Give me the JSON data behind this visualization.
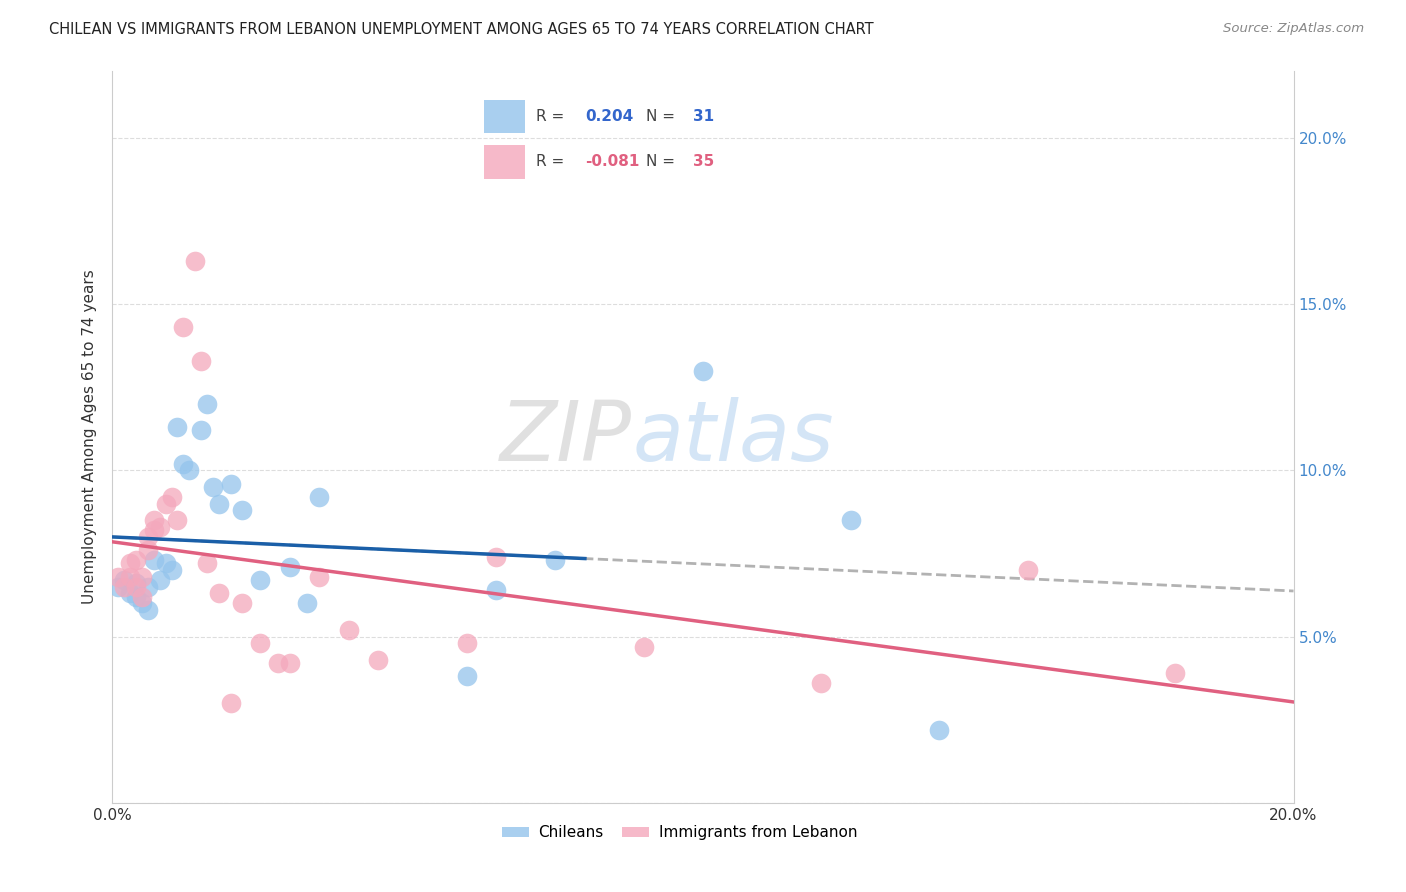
{
  "title": "CHILEAN VS IMMIGRANTS FROM LEBANON UNEMPLOYMENT AMONG AGES 65 TO 74 YEARS CORRELATION CHART",
  "source": "Source: ZipAtlas.com",
  "ylabel": "Unemployment Among Ages 65 to 74 years",
  "xlim": [
    0.0,
    0.2
  ],
  "ylim": [
    0.0,
    0.22
  ],
  "yticks": [
    0.0,
    0.05,
    0.1,
    0.15,
    0.2
  ],
  "ytick_labels_right": [
    "",
    "5.0%",
    "10.0%",
    "15.0%",
    "20.0%"
  ],
  "xtick_positions": [
    0.0,
    0.04,
    0.08,
    0.12,
    0.16,
    0.2
  ],
  "chileans_color": "#94C4EC",
  "lebanon_color": "#F4A8BC",
  "trend_chileans_color": "#1A5FA8",
  "trend_lebanon_color": "#E06080",
  "trend_dashed_color": "#AAAAAA",
  "right_axis_color": "#4488CC",
  "chileans_x": [
    0.001,
    0.002,
    0.003,
    0.004,
    0.004,
    0.005,
    0.006,
    0.006,
    0.007,
    0.008,
    0.009,
    0.01,
    0.011,
    0.012,
    0.013,
    0.015,
    0.016,
    0.017,
    0.018,
    0.02,
    0.022,
    0.025,
    0.03,
    0.033,
    0.035,
    0.06,
    0.065,
    0.075,
    0.1,
    0.125,
    0.14
  ],
  "chileans_y": [
    0.065,
    0.067,
    0.063,
    0.062,
    0.066,
    0.06,
    0.058,
    0.065,
    0.073,
    0.067,
    0.072,
    0.07,
    0.113,
    0.102,
    0.1,
    0.112,
    0.12,
    0.095,
    0.09,
    0.096,
    0.088,
    0.067,
    0.071,
    0.06,
    0.092,
    0.038,
    0.064,
    0.073,
    0.13,
    0.085,
    0.022
  ],
  "lebanon_x": [
    0.001,
    0.002,
    0.003,
    0.003,
    0.004,
    0.004,
    0.005,
    0.005,
    0.006,
    0.006,
    0.007,
    0.007,
    0.008,
    0.009,
    0.01,
    0.011,
    0.012,
    0.014,
    0.015,
    0.016,
    0.018,
    0.02,
    0.022,
    0.025,
    0.028,
    0.03,
    0.035,
    0.04,
    0.045,
    0.06,
    0.065,
    0.09,
    0.12,
    0.155,
    0.18
  ],
  "lebanon_y": [
    0.068,
    0.065,
    0.068,
    0.072,
    0.065,
    0.073,
    0.068,
    0.062,
    0.076,
    0.08,
    0.082,
    0.085,
    0.083,
    0.09,
    0.092,
    0.085,
    0.143,
    0.163,
    0.133,
    0.072,
    0.063,
    0.03,
    0.06,
    0.048,
    0.042,
    0.042,
    0.068,
    0.052,
    0.043,
    0.048,
    0.074,
    0.047,
    0.036,
    0.07,
    0.039
  ],
  "watermark_zip": "ZIP",
  "watermark_atlas": "atlas",
  "background_color": "#FFFFFF",
  "grid_color": "#DDDDDD"
}
